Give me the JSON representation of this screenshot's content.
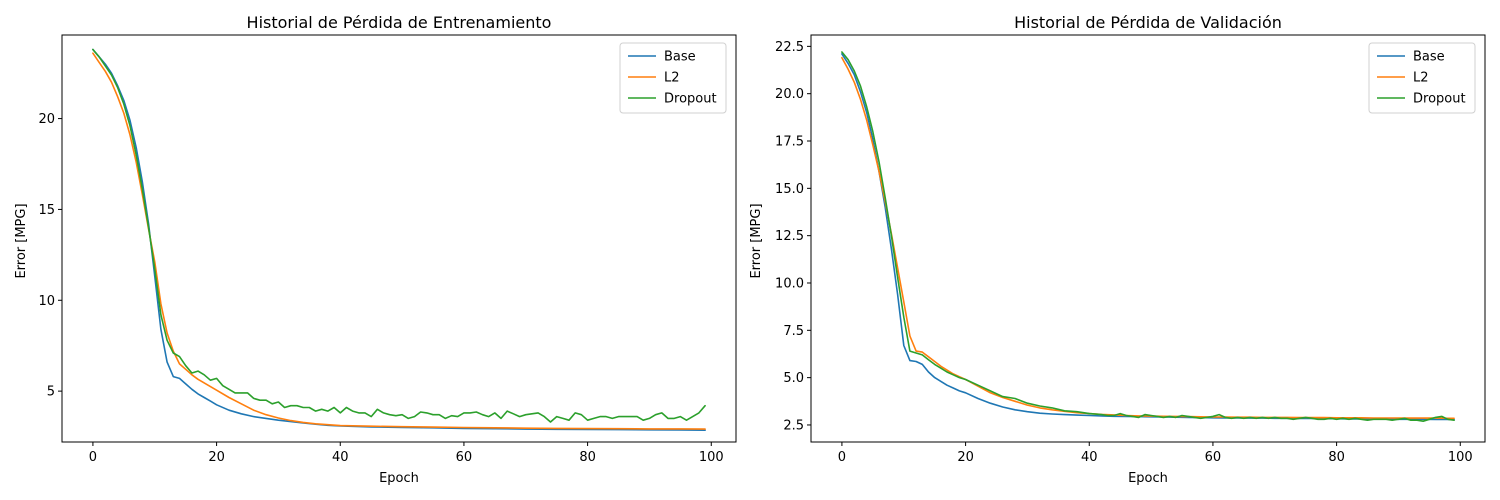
{
  "chart_data": [
    {
      "type": "line",
      "title": "Historial de Pérdida de Entrenamiento",
      "xlabel": "Epoch",
      "ylabel": "Error [MPG]",
      "xlim": [
        -5,
        104
      ],
      "ylim": [
        2.2,
        24.6
      ],
      "xticks": [
        0,
        20,
        40,
        60,
        80,
        100
      ],
      "yticks": [
        5,
        10,
        15,
        20
      ],
      "grid": false,
      "legend_position": "top-right",
      "series": [
        {
          "name": "Base",
          "color": "#1f77b4",
          "x": [
            0,
            1,
            2,
            3,
            4,
            5,
            6,
            7,
            8,
            9,
            10,
            11,
            12,
            13,
            14,
            15,
            16,
            17,
            18,
            19,
            20,
            22,
            24,
            26,
            28,
            30,
            32,
            34,
            36,
            38,
            40,
            45,
            50,
            55,
            60,
            65,
            70,
            75,
            80,
            85,
            90,
            95,
            99
          ],
          "y": [
            23.8,
            23.4,
            23.0,
            22.5,
            21.8,
            21.0,
            19.9,
            18.4,
            16.5,
            14.2,
            11.3,
            8.4,
            6.6,
            5.8,
            5.7,
            5.4,
            5.1,
            4.85,
            4.65,
            4.45,
            4.25,
            3.95,
            3.75,
            3.6,
            3.5,
            3.4,
            3.32,
            3.25,
            3.18,
            3.12,
            3.08,
            3.03,
            3.0,
            2.98,
            2.95,
            2.93,
            2.91,
            2.9,
            2.89,
            2.88,
            2.87,
            2.86,
            2.85
          ]
        },
        {
          "name": "L2",
          "color": "#ff7f0e",
          "x": [
            0,
            1,
            2,
            3,
            4,
            5,
            6,
            7,
            8,
            9,
            10,
            11,
            12,
            13,
            14,
            15,
            16,
            17,
            18,
            19,
            20,
            22,
            24,
            26,
            28,
            30,
            32,
            34,
            36,
            38,
            40,
            45,
            50,
            55,
            60,
            65,
            70,
            75,
            80,
            85,
            90,
            95,
            99
          ],
          "y": [
            23.6,
            23.1,
            22.6,
            22.0,
            21.2,
            20.3,
            19.1,
            17.6,
            15.8,
            13.9,
            12.1,
            9.8,
            8.2,
            7.2,
            6.5,
            6.2,
            5.9,
            5.65,
            5.45,
            5.25,
            5.05,
            4.65,
            4.3,
            3.95,
            3.7,
            3.52,
            3.38,
            3.28,
            3.2,
            3.15,
            3.1,
            3.07,
            3.04,
            3.02,
            3.0,
            2.98,
            2.96,
            2.95,
            2.94,
            2.93,
            2.92,
            2.92,
            2.91
          ]
        },
        {
          "name": "Dropout",
          "color": "#2ca02c",
          "x": [
            0,
            1,
            2,
            3,
            4,
            5,
            6,
            7,
            8,
            9,
            10,
            11,
            12,
            13,
            14,
            15,
            16,
            17,
            18,
            19,
            20,
            21,
            22,
            23,
            24,
            25,
            26,
            27,
            28,
            29,
            30,
            31,
            32,
            33,
            34,
            35,
            36,
            37,
            38,
            39,
            40,
            41,
            42,
            43,
            44,
            45,
            46,
            47,
            48,
            49,
            50,
            51,
            52,
            53,
            54,
            55,
            56,
            57,
            58,
            59,
            60,
            61,
            62,
            63,
            64,
            65,
            66,
            67,
            68,
            69,
            70,
            71,
            72,
            73,
            74,
            75,
            76,
            77,
            78,
            79,
            80,
            81,
            82,
            83,
            84,
            85,
            86,
            87,
            88,
            89,
            90,
            91,
            92,
            93,
            94,
            95,
            96,
            97,
            98,
            99
          ],
          "y": [
            23.8,
            23.4,
            22.9,
            22.4,
            21.7,
            20.8,
            19.6,
            18.0,
            16.1,
            14.0,
            11.7,
            9.2,
            7.8,
            7.1,
            6.9,
            6.4,
            6.0,
            6.1,
            5.9,
            5.6,
            5.7,
            5.3,
            5.1,
            4.9,
            4.9,
            4.9,
            4.6,
            4.5,
            4.5,
            4.3,
            4.4,
            4.1,
            4.2,
            4.2,
            4.1,
            4.1,
            3.9,
            4.0,
            3.9,
            4.1,
            3.8,
            4.1,
            3.9,
            3.8,
            3.8,
            3.6,
            4.0,
            3.8,
            3.7,
            3.65,
            3.7,
            3.5,
            3.6,
            3.85,
            3.8,
            3.7,
            3.7,
            3.5,
            3.65,
            3.6,
            3.8,
            3.8,
            3.85,
            3.7,
            3.6,
            3.8,
            3.5,
            3.9,
            3.75,
            3.6,
            3.7,
            3.75,
            3.8,
            3.6,
            3.3,
            3.6,
            3.5,
            3.4,
            3.8,
            3.7,
            3.4,
            3.5,
            3.6,
            3.6,
            3.5,
            3.6,
            3.6,
            3.6,
            3.6,
            3.4,
            3.5,
            3.7,
            3.8,
            3.5,
            3.5,
            3.6,
            3.4,
            3.6,
            3.8,
            4.2
          ]
        }
      ]
    },
    {
      "type": "line",
      "title": "Historial de Pérdida de Validación",
      "xlabel": "Epoch",
      "ylabel": "Error [MPG]",
      "xlim": [
        -5,
        104
      ],
      "ylim": [
        1.6,
        23.1
      ],
      "xticks": [
        0,
        20,
        40,
        60,
        80,
        100
      ],
      "yticks": [
        2.5,
        5.0,
        7.5,
        10.0,
        12.5,
        15.0,
        17.5,
        20.0,
        22.5
      ],
      "ytick_labels": [
        "2.5",
        "5.0",
        "7.5",
        "10.0",
        "12.5",
        "15.0",
        "17.5",
        "20.0",
        "22.5"
      ],
      "grid": false,
      "legend_position": "top-right",
      "series": [
        {
          "name": "Base",
          "color": "#1f77b4",
          "x": [
            0,
            1,
            2,
            3,
            4,
            5,
            6,
            7,
            8,
            9,
            10,
            11,
            12,
            13,
            14,
            15,
            16,
            17,
            18,
            19,
            20,
            22,
            24,
            26,
            28,
            30,
            32,
            34,
            36,
            38,
            40,
            42,
            44,
            46,
            48,
            50,
            52,
            54,
            56,
            58,
            60,
            62,
            64,
            66,
            68,
            70,
            72,
            74,
            76,
            78,
            80,
            82,
            84,
            86,
            88,
            90,
            92,
            94,
            96,
            98,
            99
          ],
          "y": [
            22.1,
            21.6,
            21.0,
            20.1,
            19.0,
            17.6,
            15.9,
            14.0,
            11.8,
            9.4,
            6.7,
            5.9,
            5.85,
            5.7,
            5.3,
            5.0,
            4.8,
            4.6,
            4.45,
            4.3,
            4.2,
            3.9,
            3.65,
            3.45,
            3.3,
            3.2,
            3.12,
            3.08,
            3.05,
            3.02,
            3.0,
            2.98,
            2.96,
            2.95,
            2.94,
            2.93,
            2.92,
            2.91,
            2.9,
            2.89,
            2.88,
            2.87,
            2.87,
            2.86,
            2.86,
            2.85,
            2.85,
            2.84,
            2.84,
            2.83,
            2.83,
            2.82,
            2.82,
            2.81,
            2.81,
            2.8,
            2.8,
            2.8,
            2.79,
            2.79,
            2.78
          ]
        },
        {
          "name": "L2",
          "color": "#ff7f0e",
          "x": [
            0,
            1,
            2,
            3,
            4,
            5,
            6,
            7,
            8,
            9,
            10,
            11,
            12,
            13,
            14,
            15,
            16,
            17,
            18,
            19,
            20,
            22,
            24,
            26,
            28,
            30,
            32,
            34,
            36,
            38,
            40,
            42,
            44,
            46,
            48,
            50,
            52,
            54,
            56,
            58,
            60,
            62,
            64,
            66,
            68,
            70,
            72,
            74,
            76,
            78,
            80,
            82,
            84,
            86,
            88,
            90,
            92,
            94,
            96,
            98,
            99
          ],
          "y": [
            21.9,
            21.3,
            20.6,
            19.7,
            18.6,
            17.3,
            15.9,
            14.3,
            12.6,
            10.8,
            9.0,
            7.2,
            6.4,
            6.35,
            6.1,
            5.85,
            5.6,
            5.4,
            5.2,
            5.05,
            4.9,
            4.55,
            4.2,
            3.95,
            3.75,
            3.55,
            3.4,
            3.3,
            3.22,
            3.15,
            3.1,
            3.06,
            3.03,
            3.0,
            2.98,
            2.97,
            2.96,
            2.95,
            2.94,
            2.93,
            2.92,
            2.92,
            2.91,
            2.91,
            2.9,
            2.9,
            2.9,
            2.89,
            2.89,
            2.89,
            2.88,
            2.88,
            2.88,
            2.87,
            2.87,
            2.87,
            2.86,
            2.86,
            2.86,
            2.85,
            2.85
          ]
        },
        {
          "name": "Dropout",
          "color": "#2ca02c",
          "x": [
            0,
            1,
            2,
            3,
            4,
            5,
            6,
            7,
            8,
            9,
            10,
            11,
            12,
            13,
            14,
            15,
            16,
            17,
            18,
            19,
            20,
            22,
            24,
            26,
            28,
            30,
            32,
            34,
            36,
            38,
            40,
            42,
            43,
            44,
            45,
            46,
            47,
            48,
            49,
            50,
            51,
            52,
            53,
            54,
            55,
            56,
            57,
            58,
            59,
            60,
            61,
            62,
            63,
            64,
            65,
            66,
            67,
            68,
            69,
            70,
            71,
            72,
            73,
            74,
            75,
            76,
            77,
            78,
            79,
            80,
            81,
            82,
            83,
            84,
            85,
            86,
            87,
            88,
            89,
            90,
            91,
            92,
            93,
            94,
            95,
            96,
            97,
            98,
            99
          ],
          "y": [
            22.2,
            21.8,
            21.2,
            20.4,
            19.3,
            18.0,
            16.4,
            14.5,
            12.5,
            10.3,
            8.2,
            6.4,
            6.3,
            6.2,
            5.95,
            5.7,
            5.5,
            5.3,
            5.15,
            5.0,
            4.9,
            4.6,
            4.3,
            4.0,
            3.9,
            3.65,
            3.5,
            3.4,
            3.25,
            3.2,
            3.1,
            3.05,
            3.0,
            3.0,
            3.1,
            3.0,
            2.95,
            2.9,
            3.05,
            3.0,
            2.95,
            2.9,
            2.95,
            2.9,
            3.0,
            2.95,
            2.9,
            2.85,
            2.9,
            2.95,
            3.05,
            2.9,
            2.85,
            2.9,
            2.85,
            2.9,
            2.85,
            2.9,
            2.85,
            2.9,
            2.85,
            2.85,
            2.8,
            2.85,
            2.9,
            2.85,
            2.8,
            2.8,
            2.85,
            2.8,
            2.85,
            2.8,
            2.85,
            2.8,
            2.75,
            2.8,
            2.8,
            2.8,
            2.75,
            2.8,
            2.85,
            2.75,
            2.75,
            2.7,
            2.8,
            2.9,
            2.95,
            2.8,
            2.75
          ]
        }
      ]
    }
  ]
}
